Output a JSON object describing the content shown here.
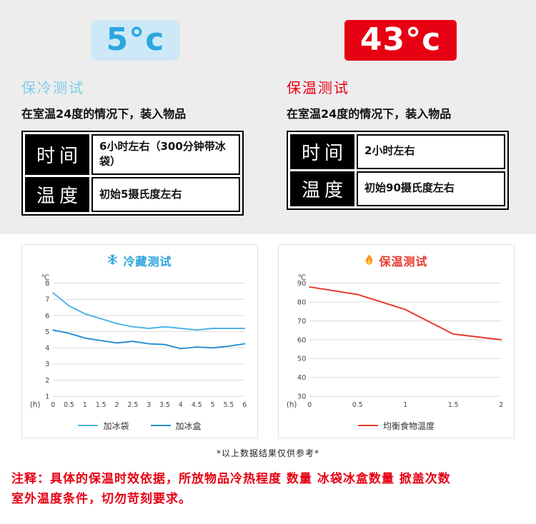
{
  "colors": {
    "top_background": "#ededed",
    "cold_accent": "#29a3dd",
    "cold_badge_bg": "#cde9f8",
    "cold_title": "#7ecbe9",
    "hot_accent": "#e60012",
    "chart_red": "#e8392d",
    "line_blue_light": "#4db4e7",
    "line_blue_dark": "#2a8fd0"
  },
  "cold_panel": {
    "badge": "5°c",
    "title": "保冷测试",
    "subtitle": "在室温24度的情况下，装入物品",
    "table": {
      "rows": [
        {
          "label": "时间",
          "value": "6小时左右（300分钟带冰袋）"
        },
        {
          "label": "温度",
          "value": "初始5摄氏度左右"
        }
      ]
    }
  },
  "hot_panel": {
    "badge": "43°c",
    "title": "保温测试",
    "subtitle": "在室温24度的情况下，装入物品",
    "table": {
      "rows": [
        {
          "label": "时间",
          "value": "2小时左右"
        },
        {
          "label": "温度",
          "value": "初始90摄氏度左右"
        }
      ]
    }
  },
  "chart_data": [
    {
      "type": "line",
      "title": "冷藏测试",
      "icon": "snowflake",
      "ylabel": "℃",
      "xlabel": "(h)",
      "x": [
        0,
        0.5,
        1,
        1.5,
        2,
        2.5,
        3,
        3.5,
        4,
        4.5,
        5,
        5.5,
        6
      ],
      "yticks": [
        8,
        7,
        6,
        5,
        4,
        3,
        2,
        1
      ],
      "ylim": [
        1,
        8
      ],
      "grid": true,
      "legend_position": "bottom",
      "series": [
        {
          "name": "加冰袋",
          "color": "#4db4e7",
          "values": [
            7.4,
            6.6,
            6.1,
            5.8,
            5.5,
            5.3,
            5.2,
            5.3,
            5.2,
            5.1,
            5.2,
            5.2,
            5.2
          ]
        },
        {
          "name": "加冰盒",
          "color": "#2a8fd0",
          "values": [
            5.1,
            4.9,
            4.6,
            4.45,
            4.3,
            4.4,
            4.25,
            4.2,
            3.95,
            4.05,
            4.0,
            4.1,
            4.25
          ]
        }
      ]
    },
    {
      "type": "line",
      "title": "保温测试",
      "icon": "flame",
      "ylabel": "℃",
      "xlabel": "(h)",
      "x": [
        0,
        0.5,
        1,
        1.5,
        2
      ],
      "yticks": [
        90,
        80,
        70,
        60,
        50,
        40,
        30
      ],
      "ylim": [
        30,
        90
      ],
      "grid": true,
      "legend_position": "bottom",
      "series": [
        {
          "name": "均衡食物温度",
          "color": "#e8392d",
          "values": [
            88,
            84,
            76,
            63,
            60
          ]
        }
      ]
    }
  ],
  "footnote": "*以上数据结果仅供参考*",
  "disclaimer": {
    "lines": [
      "注释：具体的保温时效依据，所放物品冷热程度 数量 冰袋冰盒数量 掀盖次数",
      "室外温度条件，切勿苛刻要求。"
    ]
  }
}
